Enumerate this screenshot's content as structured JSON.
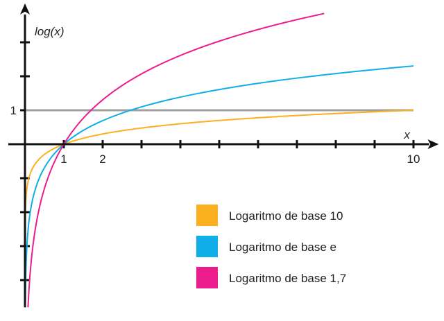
{
  "chart_data": {
    "type": "line",
    "title": "",
    "xlabel": "x",
    "ylabel": "log(x)",
    "xlim": [
      0,
      10.4
    ],
    "ylim": [
      -4.8,
      3.9
    ],
    "x_ticks": [
      1,
      2,
      3,
      4,
      5,
      6,
      7,
      8,
      9,
      10
    ],
    "x_tick_labels": [
      {
        "value": 1,
        "label": "1"
      },
      {
        "value": 2,
        "label": "2"
      },
      {
        "value": 10,
        "label": "10"
      }
    ],
    "y_ticks": [
      -4,
      -3,
      -2,
      -1,
      1,
      2,
      3
    ],
    "y_tick_labels": [
      {
        "value": 1,
        "label": "1"
      }
    ],
    "reference_line": {
      "y": 1,
      "x_range": [
        0,
        10
      ],
      "color": "#a0a0a0"
    },
    "grid": false,
    "legend_placement": "bottom-right",
    "series": [
      {
        "name": "Logaritmo de base 10",
        "base": 10,
        "x_range": [
          0,
          10
        ],
        "color": "#fbb01f"
      },
      {
        "name": "Logaritmo de base e",
        "base": 2.718281828,
        "x_range": [
          0,
          10
        ],
        "color": "#10aee8"
      },
      {
        "name": "Logaritmo de base 1,7",
        "base": 1.7,
        "x_range": [
          0,
          7.7
        ],
        "color": "#ec1c8c"
      }
    ]
  }
}
